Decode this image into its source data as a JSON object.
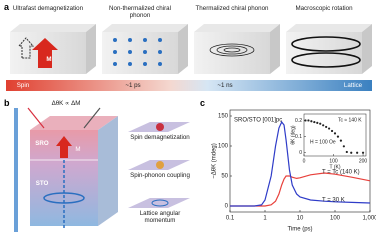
{
  "panel_a": {
    "label": "a",
    "stages": [
      "Ultrafast demagnetization",
      "Non-thermalized chiral phonon",
      "Thermalized chiral phonon",
      "Macroscopic rotation"
    ],
    "magnet_label": "M",
    "timeline": [
      "Spin",
      "~1 ps",
      "~1 ns",
      "Lattice"
    ]
  },
  "panel_b": {
    "label": "b",
    "equation": "ΔθK ∝ ΔM",
    "layer_top": "SRO",
    "magnet_label": "M",
    "layer_bottom": "STO",
    "steps": [
      "Spin demagnetization",
      "Spin-phonon coupling",
      "Lattice angular momentum"
    ]
  },
  "chart_data": {
    "type": "line",
    "label": "c",
    "log_x": true,
    "x_label": "Time (ps)",
    "y_label": "−ΔθK (mdeg)",
    "sample_label": "SRO/STO [001]pc",
    "x": [
      0.1,
      0.5,
      0.8,
      1,
      1.5,
      2,
      2.5,
      3,
      3.5,
      4,
      5,
      6,
      8,
      10,
      20,
      50,
      100,
      300,
      1000
    ],
    "series": [
      {
        "name": "T = Tc (140 K)",
        "color": "#e8413c",
        "values": [
          0,
          0,
          0,
          0,
          2,
          8,
          20,
          35,
          45,
          50,
          50,
          48,
          46,
          47,
          52,
          55,
          53,
          48,
          42
        ]
      },
      {
        "name": "T = 30 K",
        "color": "#2f3cc8",
        "values": [
          0,
          0,
          2,
          10,
          50,
          100,
          130,
          140,
          135,
          110,
          60,
          35,
          20,
          15,
          10,
          8,
          7,
          6,
          5
        ]
      }
    ],
    "xlim": [
      0.1,
      1000
    ],
    "xticks": [
      0.1,
      1,
      10,
      100,
      {
        "value": 1000,
        "label": "1,000"
      }
    ],
    "ylim": [
      -10,
      160
    ],
    "yticks": [
      0,
      50,
      100,
      150
    ],
    "inset": {
      "type": "scatter",
      "x_label": "T (K)",
      "y_label": "θK (deg)",
      "annotation": "Tc ≈ 140 K",
      "field": "H = 100 Oe",
      "color": "#222222",
      "x": [
        5,
        15,
        25,
        35,
        45,
        55,
        65,
        75,
        85,
        95,
        105,
        115,
        125,
        135,
        145,
        160,
        180,
        200
      ],
      "values": [
        0.2,
        0.2,
        0.195,
        0.19,
        0.185,
        0.18,
        0.17,
        0.16,
        0.15,
        0.135,
        0.12,
        0.1,
        0.075,
        0.04,
        0.005,
        0,
        0,
        0
      ],
      "xlim": [
        0,
        210
      ],
      "xticks": [
        0,
        100,
        200
      ],
      "ylim": [
        -0.02,
        0.24
      ],
      "yticks": [
        0,
        0.1,
        0.2
      ]
    }
  }
}
